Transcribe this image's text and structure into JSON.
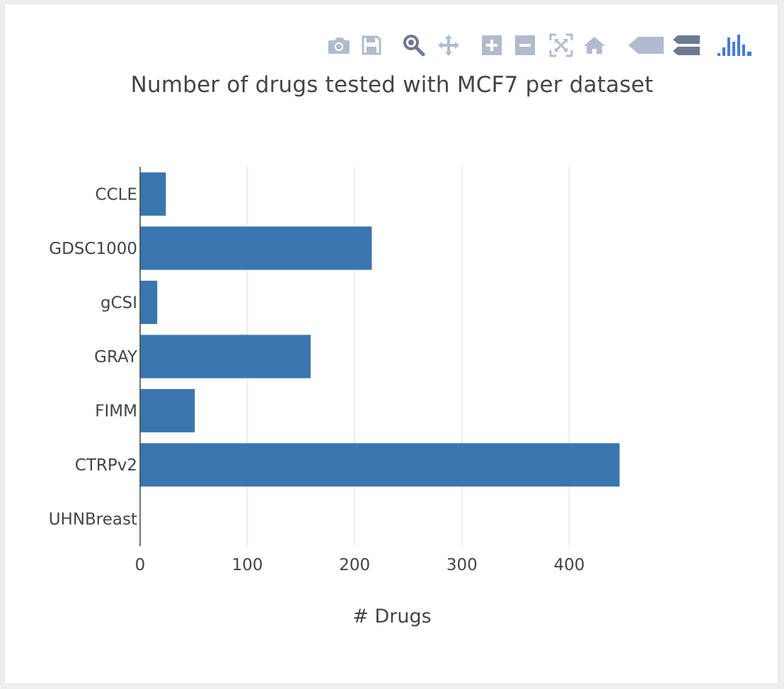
{
  "toolbar": {
    "buttons": [
      {
        "name": "camera-icon",
        "label": "Download plot as a png"
      },
      {
        "name": "save-icon",
        "label": "Save and edit plot in cloud"
      },
      {
        "name": "zoom-icon",
        "label": "Zoom"
      },
      {
        "name": "pan-icon",
        "label": "Pan"
      },
      {
        "name": "zoom-in-icon",
        "label": "Zoom in"
      },
      {
        "name": "zoom-out-icon",
        "label": "Zoom out"
      },
      {
        "name": "autoscale-icon",
        "label": "Autoscale"
      },
      {
        "name": "home-icon",
        "label": "Reset axes"
      },
      {
        "name": "hover-closest-icon",
        "label": "Show closest data on hover"
      },
      {
        "name": "hover-compare-icon",
        "label": "Compare data on hover"
      },
      {
        "name": "plotly-logo-icon",
        "label": "Produced with Plotly"
      }
    ],
    "icon_color": "#b0bccd",
    "active_color": "#6b7a90",
    "logo_color": "#447adb"
  },
  "chart_data": {
    "type": "bar",
    "orientation": "horizontal",
    "title": "Number of drugs tested with MCF7 per dataset",
    "xlabel": "# Drugs",
    "ylabel": "",
    "categories": [
      "CCLE",
      "GDSC1000",
      "gCSI",
      "GRAY",
      "FIMM",
      "CTRPv2",
      "UHNBreast"
    ],
    "values": [
      24,
      216,
      16,
      159,
      51,
      447,
      0
    ],
    "xlim": [
      0,
      500
    ],
    "xticks": [
      0,
      100,
      200,
      300,
      400
    ],
    "grid": true,
    "legend": "none",
    "bar_color": "#3a76af",
    "grid_color": "#e6e6e6"
  }
}
